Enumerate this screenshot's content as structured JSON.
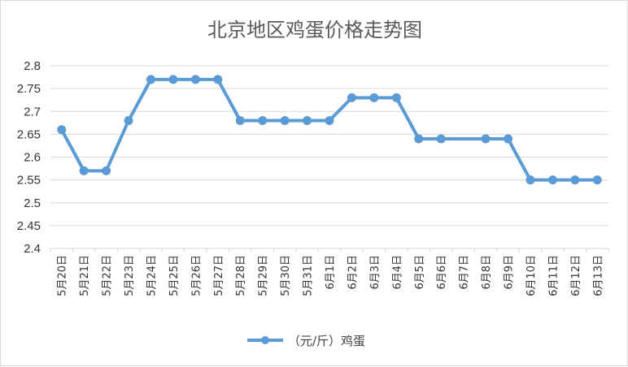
{
  "chart_data": {
    "type": "line",
    "title": "北京地区鸡蛋价格走势图",
    "categories": [
      "5月20日",
      "5月21日",
      "5月22日",
      "5月23日",
      "5月24日",
      "5月25日",
      "5月26日",
      "5月27日",
      "5月28日",
      "5月29日",
      "5月30日",
      "5月31日",
      "6月1日",
      "6月2日",
      "6月3日",
      "6月4日",
      "6月5日",
      "6月6日",
      "6月7日",
      "6月8日",
      "6月9日",
      "6月10日",
      "6月11日",
      "6月12日",
      "6月13日"
    ],
    "y_ticks": [
      "2.4",
      "2.45",
      "2.5",
      "2.55",
      "2.6",
      "2.65",
      "2.7",
      "2.75",
      "2.8"
    ],
    "ylim": [
      2.4,
      2.8
    ],
    "grid": true,
    "legend": "bottom",
    "series": [
      {
        "name": "（元/斤）鸡蛋",
        "color": "#5b9bd5",
        "values": [
          2.66,
          2.57,
          2.57,
          2.68,
          2.77,
          2.77,
          2.77,
          2.77,
          2.68,
          2.68,
          2.68,
          2.68,
          2.68,
          2.73,
          2.73,
          2.73,
          2.64,
          2.64,
          null,
          2.64,
          2.64,
          2.55,
          2.55,
          2.55,
          2.55
        ]
      }
    ]
  }
}
